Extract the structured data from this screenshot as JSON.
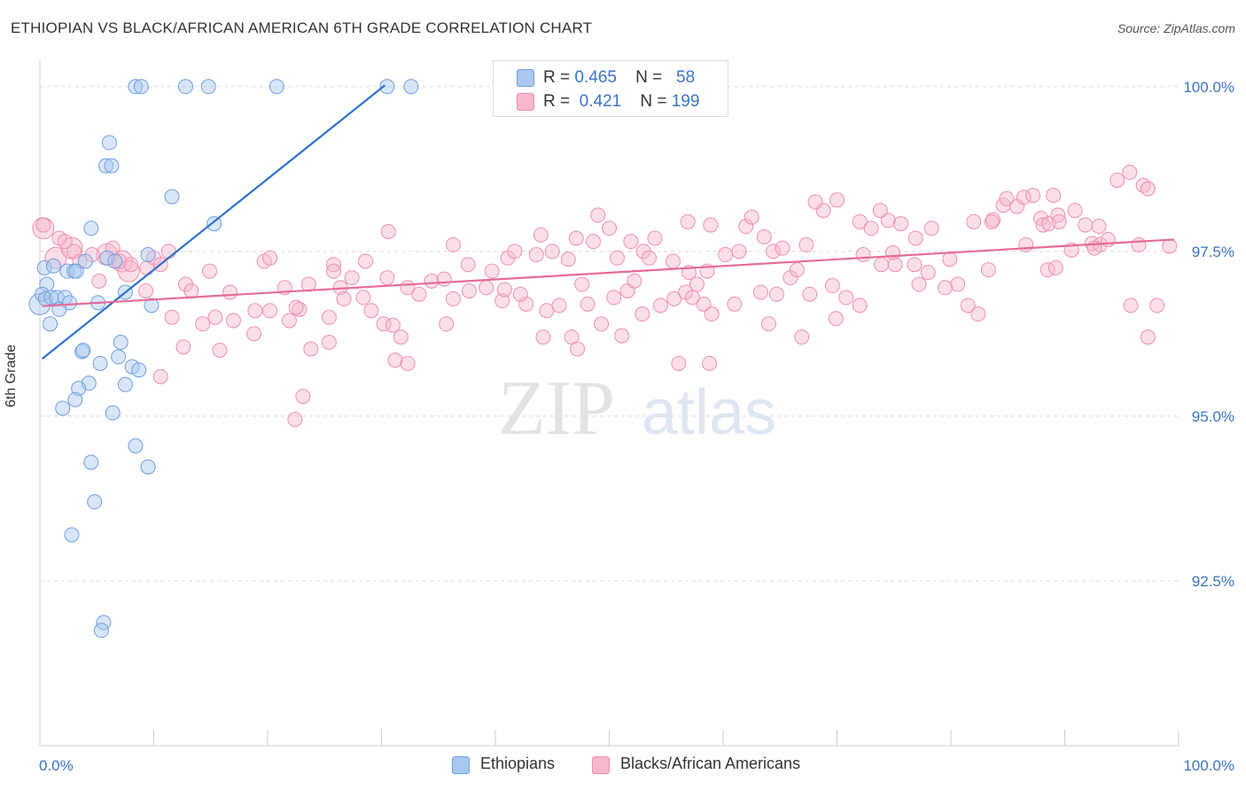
{
  "title": "ETHIOPIAN VS BLACK/AFRICAN AMERICAN 6TH GRADE CORRELATION CHART",
  "source": "Source: ZipAtlas.com",
  "watermark": {
    "zip": "ZIP",
    "atlas": "atlas"
  },
  "legend": {
    "rows": [
      {
        "r_label": "R =",
        "r_value": "0.465",
        "n_label": "N =",
        "n_value": "58",
        "color": "#a9c8f0"
      },
      {
        "r_label": "R =",
        "r_value": "0.421",
        "n_label": "N =",
        "n_value": "199",
        "color": "#f7b8cc"
      }
    ]
  },
  "bottom_legend": [
    {
      "label": "Ethiopians",
      "color": "#a9c8f0"
    },
    {
      "label": "Blacks/African Americans",
      "color": "#f7b8cc"
    }
  ],
  "chart_data": {
    "type": "scatter",
    "title": "ETHIOPIAN VS BLACK/AFRICAN AMERICAN 6TH GRADE CORRELATION CHART",
    "xlabel": "",
    "ylabel": "6th Grade",
    "xlim": [
      0,
      100
    ],
    "ylim": [
      90.0,
      100.4
    ],
    "x_tick_labels": [
      "0.0%",
      "100.0%"
    ],
    "y_ticks": [
      92.5,
      95.0,
      97.5,
      100.0
    ],
    "y_tick_labels": [
      "92.5%",
      "95.0%",
      "97.5%",
      "100.0%"
    ],
    "grid": true,
    "series": [
      {
        "name": "Ethiopians",
        "color": "#6f9fe0",
        "fill": "#a9c8f0",
        "line_color": "#2f72d0",
        "trend": {
          "x": [
            0.2,
            30.3
          ],
          "y": [
            95.87,
            100.02
          ]
        },
        "points": [
          [
            8.4,
            100.0
          ],
          [
            8.9,
            100.0
          ],
          [
            12.8,
            100.0
          ],
          [
            14.8,
            100.0
          ],
          [
            20.8,
            100.0
          ],
          [
            30.5,
            100.0
          ],
          [
            32.6,
            100.0
          ],
          [
            6.1,
            99.15
          ],
          [
            5.8,
            98.8
          ],
          [
            6.3,
            98.8
          ],
          [
            11.6,
            98.33
          ],
          [
            15.3,
            97.92
          ],
          [
            4.5,
            97.85
          ],
          [
            0.4,
            97.25
          ],
          [
            0.6,
            97.0
          ],
          [
            1.2,
            97.28
          ],
          [
            2.4,
            97.2
          ],
          [
            3.0,
            97.2
          ],
          [
            3.2,
            97.2
          ],
          [
            4.0,
            97.35
          ],
          [
            5.9,
            97.4
          ],
          [
            6.6,
            97.35
          ],
          [
            9.5,
            97.45
          ],
          [
            0.2,
            96.85
          ],
          [
            0.5,
            96.78
          ],
          [
            1.0,
            96.8
          ],
          [
            1.5,
            96.8
          ],
          [
            2.2,
            96.8
          ],
          [
            2.6,
            96.72
          ],
          [
            1.7,
            96.62
          ],
          [
            5.1,
            96.72
          ],
          [
            7.5,
            96.88
          ],
          [
            9.8,
            96.68
          ],
          [
            0.9,
            96.4
          ],
          [
            7.1,
            96.12
          ],
          [
            3.7,
            95.98
          ],
          [
            3.8,
            96.0
          ],
          [
            6.9,
            95.9
          ],
          [
            5.3,
            95.8
          ],
          [
            8.1,
            95.75
          ],
          [
            8.7,
            95.7
          ],
          [
            4.3,
            95.5
          ],
          [
            3.4,
            95.42
          ],
          [
            7.5,
            95.48
          ],
          [
            3.1,
            95.25
          ],
          [
            2.0,
            95.12
          ],
          [
            6.4,
            95.05
          ],
          [
            8.4,
            94.55
          ],
          [
            9.5,
            94.23
          ],
          [
            4.5,
            94.3
          ],
          [
            4.8,
            93.7
          ],
          [
            2.8,
            93.2
          ],
          [
            5.6,
            91.87
          ],
          [
            5.4,
            91.75
          ]
        ],
        "big_points": [
          [
            0.0,
            96.7
          ]
        ]
      },
      {
        "name": "Blacks/African Americans",
        "color": "#ef8faf",
        "fill": "#f7b8cc",
        "line_color": "#e66b96",
        "trend": {
          "x": [
            0.2,
            99.6
          ],
          "y": [
            96.67,
            97.68
          ]
        },
        "points": [
          [
            0.3,
            97.9
          ],
          [
            1.7,
            97.7
          ],
          [
            2.2,
            97.65
          ],
          [
            3.0,
            97.5
          ],
          [
            4.6,
            97.45
          ],
          [
            6.4,
            97.55
          ],
          [
            7.0,
            97.35
          ],
          [
            9.4,
            97.25
          ],
          [
            10.0,
            97.4
          ],
          [
            11.3,
            97.5
          ],
          [
            3.5,
            97.35
          ],
          [
            5.2,
            97.05
          ],
          [
            8.0,
            97.3
          ],
          [
            10.6,
            97.3
          ],
          [
            14.9,
            97.2
          ],
          [
            19.7,
            97.35
          ],
          [
            20.2,
            97.4
          ],
          [
            25.8,
            97.3
          ],
          [
            27.4,
            97.1
          ],
          [
            28.6,
            97.35
          ],
          [
            9.3,
            96.9
          ],
          [
            12.8,
            97.0
          ],
          [
            13.3,
            96.9
          ],
          [
            16.7,
            96.88
          ],
          [
            21.5,
            96.95
          ],
          [
            22.8,
            96.62
          ],
          [
            23.6,
            97.0
          ],
          [
            25.8,
            97.2
          ],
          [
            26.4,
            96.95
          ],
          [
            30.5,
            97.1
          ],
          [
            11.6,
            96.5
          ],
          [
            14.3,
            96.4
          ],
          [
            15.4,
            96.5
          ],
          [
            17.0,
            96.45
          ],
          [
            18.9,
            96.6
          ],
          [
            20.2,
            96.6
          ],
          [
            21.9,
            96.45
          ],
          [
            22.5,
            96.65
          ],
          [
            25.4,
            96.5
          ],
          [
            26.7,
            96.78
          ],
          [
            28.4,
            96.8
          ],
          [
            29.1,
            96.6
          ],
          [
            30.2,
            96.4
          ],
          [
            31.0,
            96.38
          ],
          [
            32.3,
            96.95
          ],
          [
            33.3,
            96.85
          ],
          [
            34.4,
            97.05
          ],
          [
            35.5,
            97.08
          ],
          [
            36.3,
            96.78
          ],
          [
            37.7,
            96.9
          ],
          [
            12.6,
            96.05
          ],
          [
            15.8,
            96.0
          ],
          [
            18.8,
            96.25
          ],
          [
            23.8,
            96.02
          ],
          [
            25.4,
            96.12
          ],
          [
            31.7,
            96.2
          ],
          [
            31.2,
            95.85
          ],
          [
            32.3,
            95.8
          ],
          [
            35.7,
            96.4
          ],
          [
            39.2,
            96.95
          ],
          [
            10.6,
            95.6
          ],
          [
            23.1,
            95.3
          ],
          [
            22.4,
            94.95
          ],
          [
            30.6,
            97.8
          ],
          [
            36.3,
            97.6
          ],
          [
            37.6,
            97.3
          ],
          [
            39.7,
            97.2
          ],
          [
            41.1,
            97.4
          ],
          [
            41.7,
            97.5
          ],
          [
            42.7,
            96.7
          ],
          [
            40.6,
            96.75
          ],
          [
            40.8,
            96.92
          ],
          [
            42.2,
            96.85
          ],
          [
            44.2,
            96.2
          ],
          [
            44.5,
            96.6
          ],
          [
            45.6,
            96.68
          ],
          [
            43.6,
            97.45
          ],
          [
            45.0,
            97.5
          ],
          [
            46.4,
            97.38
          ],
          [
            47.1,
            97.7
          ],
          [
            44.0,
            97.75
          ],
          [
            49.0,
            98.05
          ],
          [
            48.6,
            97.65
          ],
          [
            50.0,
            97.85
          ],
          [
            50.7,
            97.4
          ],
          [
            51.9,
            97.65
          ],
          [
            53.0,
            97.5
          ],
          [
            53.5,
            97.4
          ],
          [
            55.6,
            97.35
          ],
          [
            57.0,
            97.18
          ],
          [
            47.6,
            97.0
          ],
          [
            48.1,
            96.7
          ],
          [
            50.4,
            96.8
          ],
          [
            51.6,
            96.9
          ],
          [
            52.2,
            97.05
          ],
          [
            54.5,
            96.68
          ],
          [
            55.7,
            96.78
          ],
          [
            56.7,
            96.88
          ],
          [
            57.3,
            96.8
          ],
          [
            58.3,
            96.7
          ],
          [
            46.7,
            96.2
          ],
          [
            47.2,
            96.02
          ],
          [
            49.3,
            96.4
          ],
          [
            51.1,
            96.22
          ],
          [
            52.9,
            96.55
          ],
          [
            56.1,
            95.8
          ],
          [
            58.8,
            95.8
          ],
          [
            57.7,
            97.0
          ],
          [
            59.0,
            96.55
          ],
          [
            61.0,
            96.7
          ],
          [
            56.9,
            97.95
          ],
          [
            58.6,
            97.2
          ],
          [
            60.2,
            97.45
          ],
          [
            62.0,
            97.88
          ],
          [
            62.5,
            98.02
          ],
          [
            63.6,
            97.72
          ],
          [
            64.4,
            97.5
          ],
          [
            65.2,
            97.55
          ],
          [
            67.3,
            97.6
          ],
          [
            68.8,
            98.12
          ],
          [
            63.3,
            96.88
          ],
          [
            64.7,
            96.85
          ],
          [
            65.9,
            97.1
          ],
          [
            67.6,
            96.85
          ],
          [
            69.6,
            96.98
          ],
          [
            70.8,
            96.8
          ],
          [
            72.0,
            96.68
          ],
          [
            72.3,
            97.45
          ],
          [
            73.9,
            97.3
          ],
          [
            74.9,
            97.48
          ],
          [
            64.0,
            96.4
          ],
          [
            66.9,
            96.2
          ],
          [
            69.9,
            96.48
          ],
          [
            72.0,
            97.95
          ],
          [
            73.8,
            98.12
          ],
          [
            74.5,
            97.97
          ],
          [
            75.6,
            97.92
          ],
          [
            76.9,
            97.7
          ],
          [
            78.3,
            97.85
          ],
          [
            79.9,
            97.38
          ],
          [
            68.1,
            98.25
          ],
          [
            70.0,
            98.28
          ],
          [
            73.0,
            97.85
          ],
          [
            75.1,
            97.3
          ],
          [
            76.8,
            97.3
          ],
          [
            77.2,
            97.0
          ],
          [
            78.0,
            97.18
          ],
          [
            80.6,
            97.0
          ],
          [
            82.0,
            97.95
          ],
          [
            83.7,
            97.98
          ],
          [
            79.5,
            96.95
          ],
          [
            81.5,
            96.68
          ],
          [
            82.4,
            96.55
          ],
          [
            83.3,
            97.22
          ],
          [
            83.6,
            97.95
          ],
          [
            84.6,
            98.2
          ],
          [
            84.9,
            98.3
          ],
          [
            85.8,
            98.18
          ],
          [
            86.4,
            98.32
          ],
          [
            87.2,
            98.35
          ],
          [
            87.9,
            98.0
          ],
          [
            88.1,
            97.9
          ],
          [
            88.6,
            97.92
          ],
          [
            89.0,
            98.35
          ],
          [
            89.4,
            98.05
          ],
          [
            90.6,
            97.52
          ],
          [
            91.8,
            97.9
          ],
          [
            92.4,
            97.62
          ],
          [
            93.1,
            97.6
          ],
          [
            93.8,
            97.68
          ],
          [
            88.5,
            97.22
          ],
          [
            89.5,
            97.95
          ],
          [
            90.9,
            98.12
          ],
          [
            92.6,
            97.55
          ],
          [
            93.0,
            97.88
          ],
          [
            94.6,
            98.58
          ],
          [
            95.7,
            98.7
          ],
          [
            96.5,
            97.6
          ],
          [
            96.9,
            98.5
          ],
          [
            97.3,
            98.45
          ],
          [
            95.8,
            96.68
          ],
          [
            97.3,
            96.2
          ],
          [
            98.1,
            96.68
          ],
          [
            99.2,
            97.58
          ],
          [
            89.2,
            97.25
          ],
          [
            86.6,
            97.6
          ],
          [
            66.5,
            97.22
          ],
          [
            61.4,
            97.5
          ],
          [
            58.9,
            97.9
          ],
          [
            54.0,
            97.7
          ]
        ],
        "big_points": [
          [
            0.3,
            97.85
          ],
          [
            1.4,
            97.4
          ],
          [
            2.8,
            97.55
          ],
          [
            5.9,
            97.45
          ],
          [
            7.2,
            97.35
          ],
          [
            7.8,
            97.2
          ]
        ]
      }
    ]
  }
}
